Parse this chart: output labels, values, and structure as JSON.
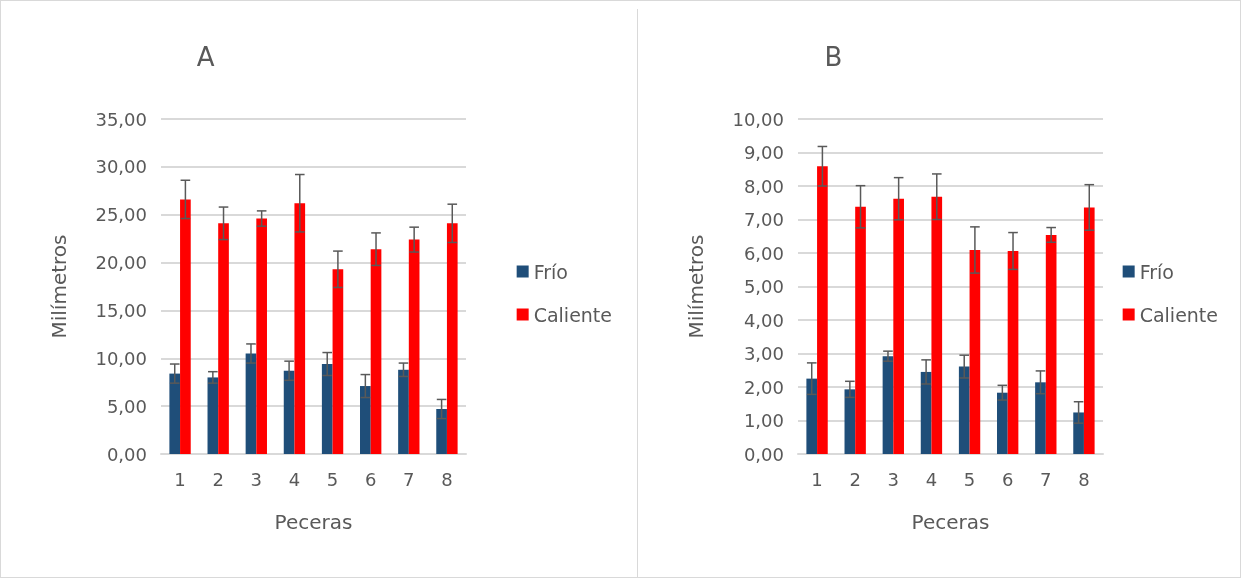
{
  "chart_data": [
    {
      "type": "bar",
      "title": "A",
      "xlabel": "Peceras",
      "ylabel": "Milímetros",
      "categories": [
        "1",
        "2",
        "3",
        "4",
        "5",
        "6",
        "7",
        "8"
      ],
      "series": [
        {
          "name": "Frío",
          "color": "#1f4e79",
          "values": [
            8.4,
            8.0,
            10.5,
            8.7,
            9.4,
            7.1,
            8.8,
            4.7
          ],
          "errors": [
            1.0,
            0.6,
            1.0,
            1.0,
            1.2,
            1.2,
            0.7,
            1.0
          ]
        },
        {
          "name": "Caliente",
          "color": "#ff0000",
          "values": [
            26.6,
            24.1,
            24.6,
            26.2,
            19.3,
            21.4,
            22.4,
            24.1
          ],
          "errors": [
            2.0,
            1.7,
            0.8,
            3.0,
            1.9,
            1.7,
            1.3,
            2.0
          ]
        }
      ],
      "ylim": [
        0,
        35
      ],
      "yticks": [
        {
          "value": 0,
          "label": "0,00"
        },
        {
          "value": 5,
          "label": "5,00"
        },
        {
          "value": 10,
          "label": "10,00"
        },
        {
          "value": 15,
          "label": "15,00"
        },
        {
          "value": 20,
          "label": "20,00"
        },
        {
          "value": 25,
          "label": "25,00"
        },
        {
          "value": 30,
          "label": "30,00"
        },
        {
          "value": 35,
          "label": "35,00"
        }
      ],
      "grid": "y",
      "legend": "right"
    },
    {
      "type": "bar",
      "title": "B",
      "xlabel": "Peceras",
      "ylabel": "Milímetros",
      "categories": [
        "1",
        "2",
        "3",
        "4",
        "5",
        "6",
        "7",
        "8"
      ],
      "series": [
        {
          "name": "Frío",
          "color": "#1f4e79",
          "values": [
            2.25,
            1.93,
            2.92,
            2.45,
            2.61,
            1.83,
            2.14,
            1.24
          ],
          "errors": [
            0.47,
            0.24,
            0.15,
            0.36,
            0.34,
            0.22,
            0.34,
            0.32
          ]
        },
        {
          "name": "Caliente",
          "color": "#ff0000",
          "values": [
            8.59,
            7.38,
            7.62,
            7.68,
            6.09,
            6.06,
            6.54,
            7.36
          ],
          "errors": [
            0.59,
            0.63,
            0.63,
            0.68,
            0.69,
            0.55,
            0.22,
            0.68
          ]
        }
      ],
      "ylim": [
        0,
        10
      ],
      "yticks": [
        {
          "value": 0,
          "label": "0,00"
        },
        {
          "value": 1,
          "label": "1,00"
        },
        {
          "value": 2,
          "label": "2,00"
        },
        {
          "value": 3,
          "label": "3,00"
        },
        {
          "value": 4,
          "label": "4,00"
        },
        {
          "value": 5,
          "label": "5,00"
        },
        {
          "value": 6,
          "label": "6,00"
        },
        {
          "value": 7,
          "label": "7,00"
        },
        {
          "value": 8,
          "label": "8,00"
        },
        {
          "value": 9,
          "label": "9,00"
        },
        {
          "value": 10,
          "label": "10,00"
        }
      ],
      "grid": "y",
      "legend": "right"
    }
  ]
}
